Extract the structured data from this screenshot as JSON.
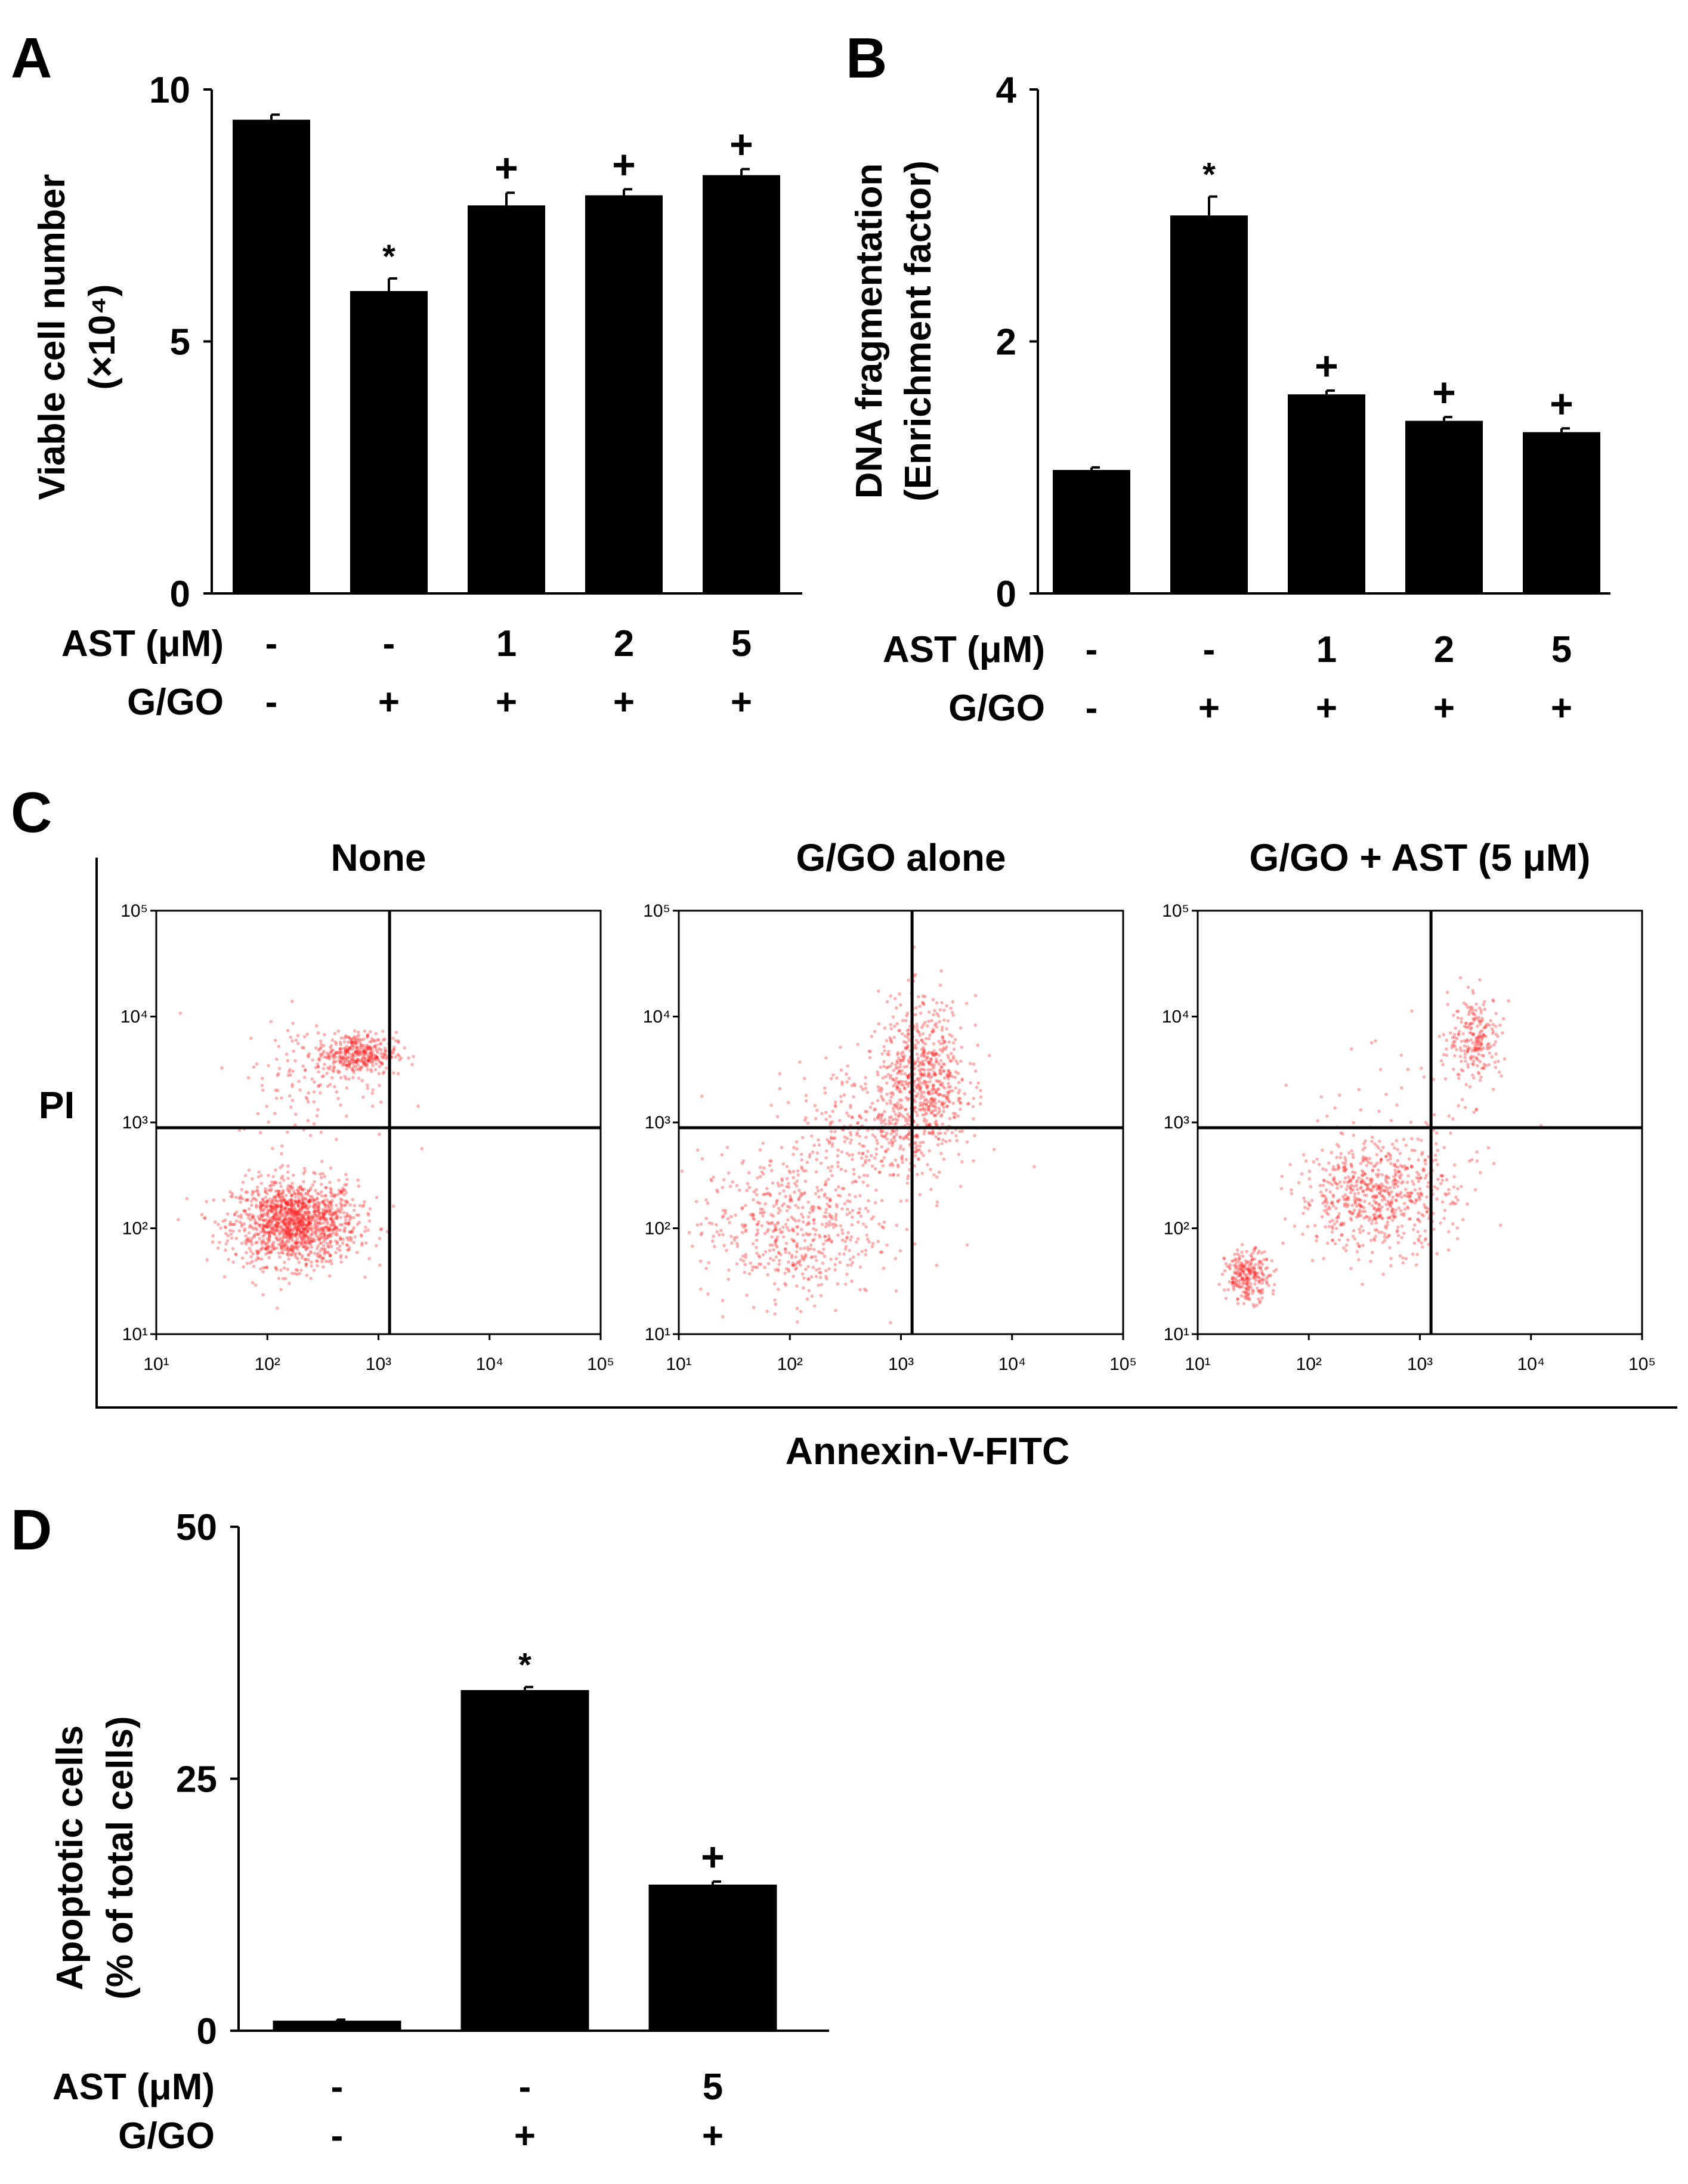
{
  "colors": {
    "bar": "#000000",
    "dots": "#ff2020",
    "axis": "#000000",
    "background": "#ffffff"
  },
  "chart_data": [
    {
      "panel": "A",
      "type": "bar",
      "ylabel_line1": "Viable cell number",
      "ylabel_line2": "(×10⁴)",
      "ylim": [
        0,
        10
      ],
      "yticks": [
        0,
        5,
        10
      ],
      "values": [
        9.4,
        6.0,
        7.7,
        7.9,
        8.3
      ],
      "errors": [
        0.1,
        0.25,
        0.25,
        0.12,
        0.12
      ],
      "marks": [
        "",
        "*",
        "+",
        "+",
        "+"
      ],
      "row1_label": "AST (μM)",
      "row1": [
        "-",
        "-",
        "1",
        "2",
        "5"
      ],
      "row2_label": "G/GO",
      "row2": [
        "-",
        "+",
        "+",
        "+",
        "+"
      ]
    },
    {
      "panel": "B",
      "type": "bar",
      "ylabel_line1": "DNA fragmentation",
      "ylabel_line2": "(Enrichment factor)",
      "ylim": [
        0,
        4
      ],
      "yticks": [
        0,
        2,
        4
      ],
      "values": [
        0.98,
        3.0,
        1.58,
        1.37,
        1.28
      ],
      "errors": [
        0.02,
        0.15,
        0.03,
        0.03,
        0.03
      ],
      "marks": [
        "",
        "*",
        "+",
        "+",
        "+"
      ],
      "row1_label": "AST (μM)",
      "row1": [
        "-",
        "-",
        "1",
        "2",
        "5"
      ],
      "row2_label": "G/GO",
      "row2": [
        "-",
        "+",
        "+",
        "+",
        "+"
      ]
    },
    {
      "panel": "C",
      "type": "scatter",
      "ylabel": "PI",
      "xlabel": "Annexin-V-FITC",
      "axis_scale": "log",
      "axis_range_log10": [
        1,
        5
      ],
      "tick_labels": [
        "10¹",
        "10²",
        "10³",
        "10⁴",
        "10⁵"
      ],
      "quadrant_gate_log10": {
        "x": 3.1,
        "y": 2.95
      },
      "plots": [
        {
          "title": "None",
          "clusters": [
            {
              "cx": 2.25,
              "cy": 2.05,
              "sx": 0.28,
              "sy": 0.2,
              "n": 1400
            },
            {
              "cx": 2.8,
              "cy": 3.65,
              "sx": 0.18,
              "sy": 0.1,
              "n": 380
            },
            {
              "cx": 2.4,
              "cy": 3.4,
              "sx": 0.35,
              "sy": 0.3,
              "n": 120
            }
          ]
        },
        {
          "title": "G/GO alone",
          "clusters": [
            {
              "cx": 2.0,
              "cy": 2.0,
              "sx": 0.4,
              "sy": 0.35,
              "n": 550
            },
            {
              "cx": 3.2,
              "cy": 3.4,
              "sx": 0.2,
              "sy": 0.38,
              "n": 700
            },
            {
              "cx": 2.7,
              "cy": 2.9,
              "sx": 0.35,
              "sy": 0.35,
              "n": 300
            }
          ]
        },
        {
          "title": "G/GO + AST (5 μM)",
          "clusters": [
            {
              "cx": 1.45,
              "cy": 1.55,
              "sx": 0.1,
              "sy": 0.12,
              "n": 250
            },
            {
              "cx": 2.6,
              "cy": 2.3,
              "sx": 0.35,
              "sy": 0.25,
              "n": 650
            },
            {
              "cx": 3.5,
              "cy": 3.8,
              "sx": 0.12,
              "sy": 0.2,
              "n": 220
            },
            {
              "cx": 3.0,
              "cy": 3.0,
              "sx": 0.4,
              "sy": 0.4,
              "n": 80
            }
          ]
        }
      ]
    },
    {
      "panel": "D",
      "type": "bar",
      "ylabel_line1": "Apoptotic cells",
      "ylabel_line2": "(% of total cells)",
      "ylim": [
        0,
        50
      ],
      "yticks": [
        0,
        25,
        50
      ],
      "values": [
        1.0,
        33.8,
        14.5
      ],
      "errors": [
        0.1,
        0.3,
        0.3
      ],
      "marks": [
        "",
        "*",
        "+"
      ],
      "row1_label": "AST (μM)",
      "row1": [
        "-",
        "-",
        "5"
      ],
      "row2_label": "G/GO",
      "row2": [
        "-",
        "+",
        "+"
      ]
    }
  ]
}
